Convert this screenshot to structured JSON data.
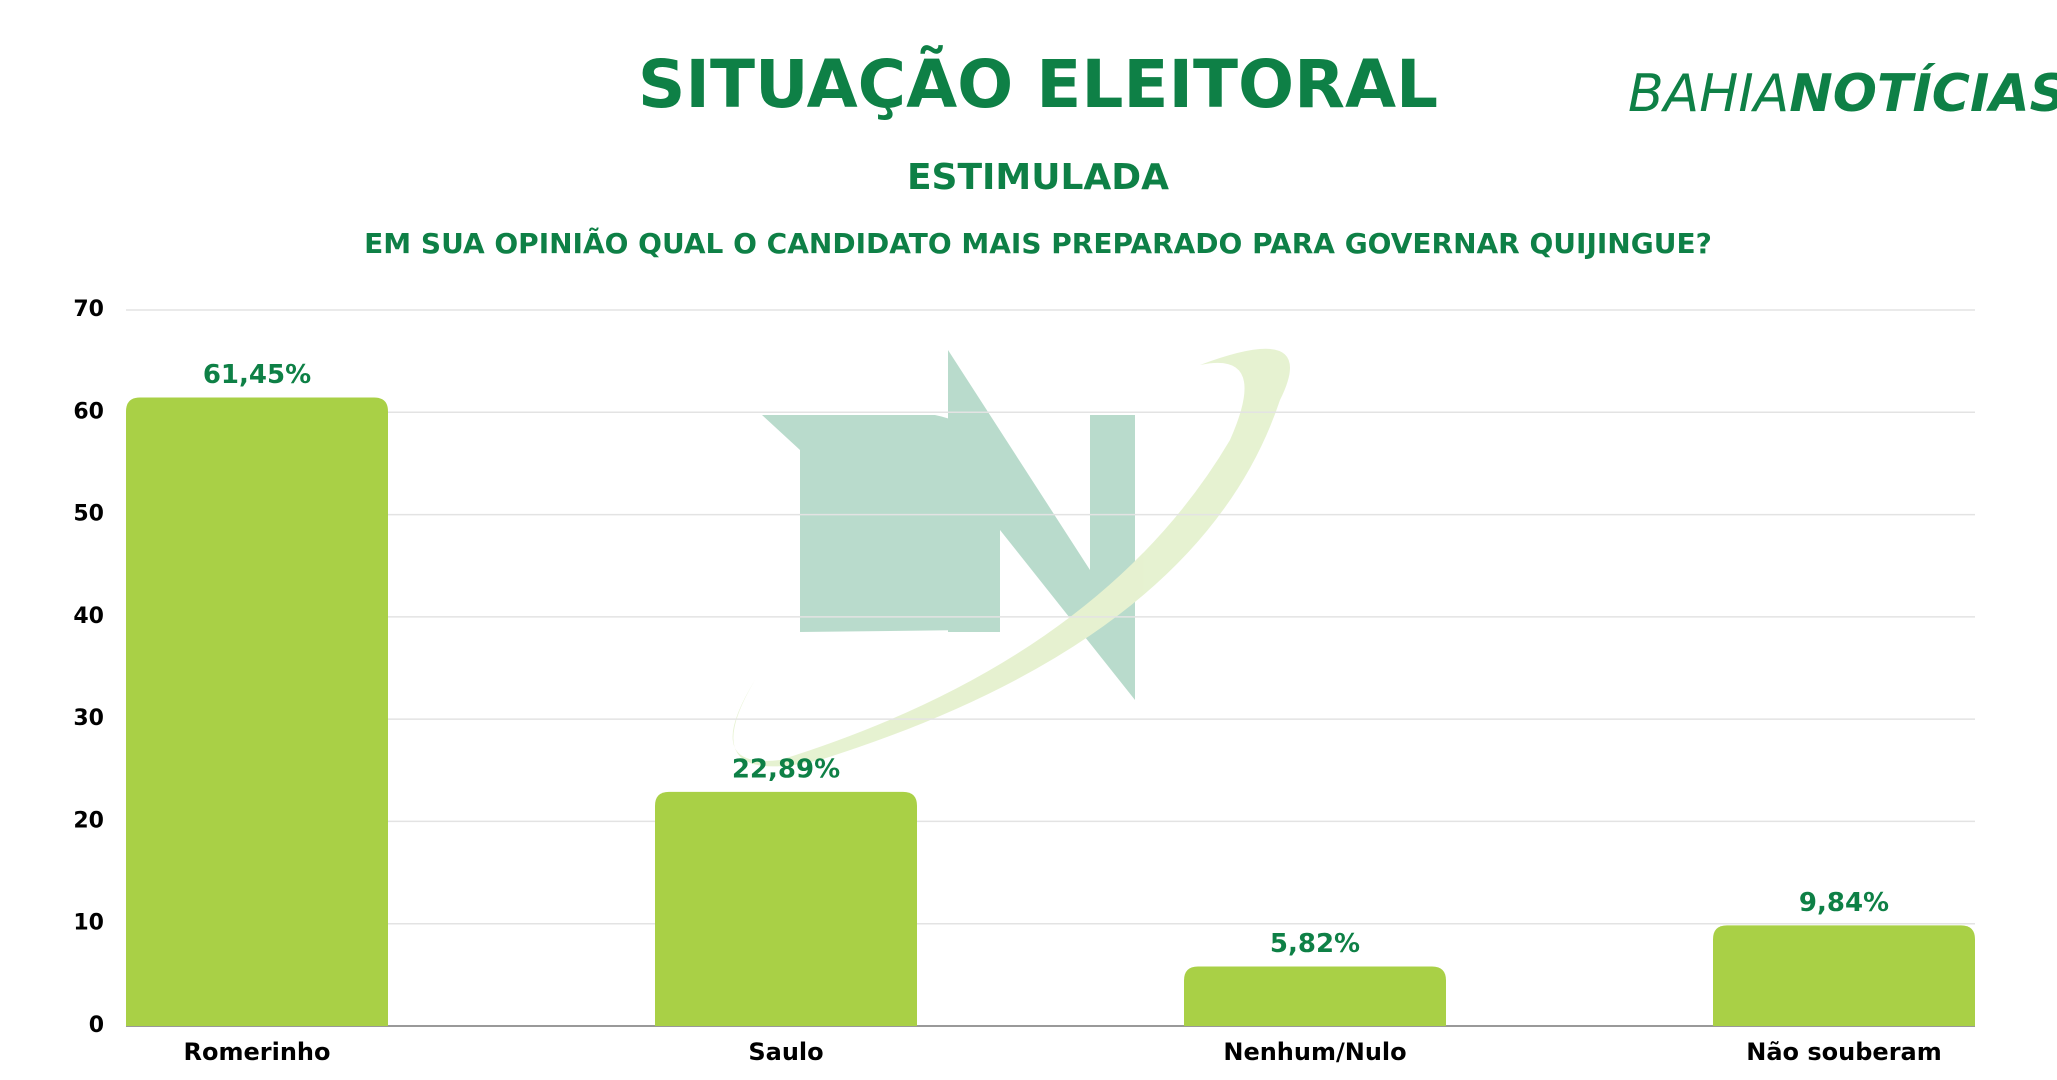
{
  "chart_data": {
    "type": "bar",
    "title": "SITUAÇÃO ELEITORAL",
    "subtitle": "ESTIMULADA",
    "question": "EM SUA OPINIÃO QUAL O CANDIDATO MAIS PREPARADO PARA GOVERNAR QUIJINGUE?",
    "categories": [
      "Romerinho",
      "Saulo",
      "Nenhum/Nulo",
      "Não souberam"
    ],
    "values": [
      61.45,
      22.89,
      5.82,
      9.84
    ],
    "value_labels": [
      "61,45%",
      "22,89%",
      "5,82%",
      "9,84%"
    ],
    "color": "#a9d046",
    "ylim": [
      0,
      70
    ],
    "yticks": [
      0,
      10,
      20,
      30,
      40,
      50,
      60,
      70
    ],
    "grid": true
  },
  "logo": {
    "light": "BAHIA",
    "bold": "NOTÍCIAS"
  }
}
